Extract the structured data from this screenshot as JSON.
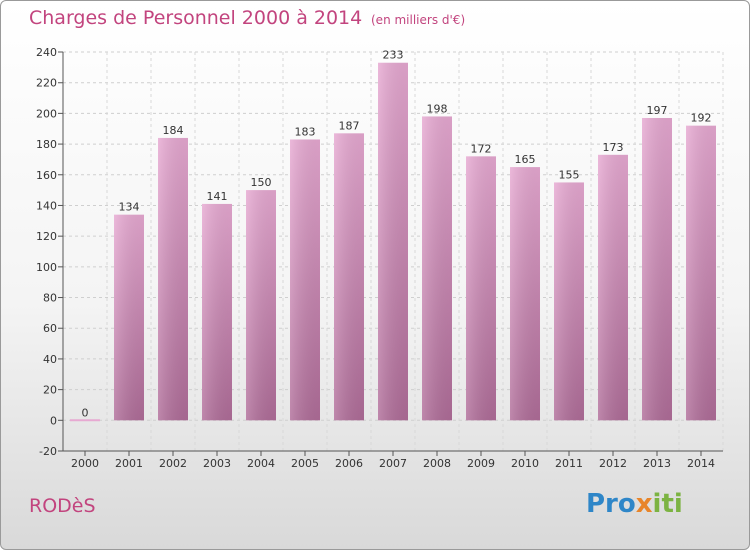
{
  "header": {
    "title": "Charges de Personnel 2000 à 2014",
    "subtitle": "(en milliers d'€)"
  },
  "footer": {
    "city": "RODèS",
    "logo": "Proxiti"
  },
  "colors": {
    "accent": "#c2447e",
    "bar_top": "#e7a9d2",
    "bar_bottom": "#b06d99"
  },
  "chart_data": {
    "type": "bar",
    "categories": [
      "2000",
      "2001",
      "2002",
      "2003",
      "2004",
      "2005",
      "2006",
      "2007",
      "2008",
      "2009",
      "2010",
      "2011",
      "2012",
      "2013",
      "2014"
    ],
    "values": [
      0,
      134,
      184,
      141,
      150,
      183,
      187,
      233,
      198,
      172,
      165,
      155,
      173,
      197,
      192
    ],
    "title": "Charges de Personnel 2000 à 2014",
    "subtitle": "(en milliers d'€)",
    "xlabel": "",
    "ylabel": "",
    "ylim": [
      -20,
      240
    ],
    "yticks": [
      -20,
      0,
      20,
      40,
      60,
      80,
      100,
      120,
      140,
      160,
      180,
      200,
      220,
      240
    ],
    "grid": true,
    "legend": "none"
  }
}
